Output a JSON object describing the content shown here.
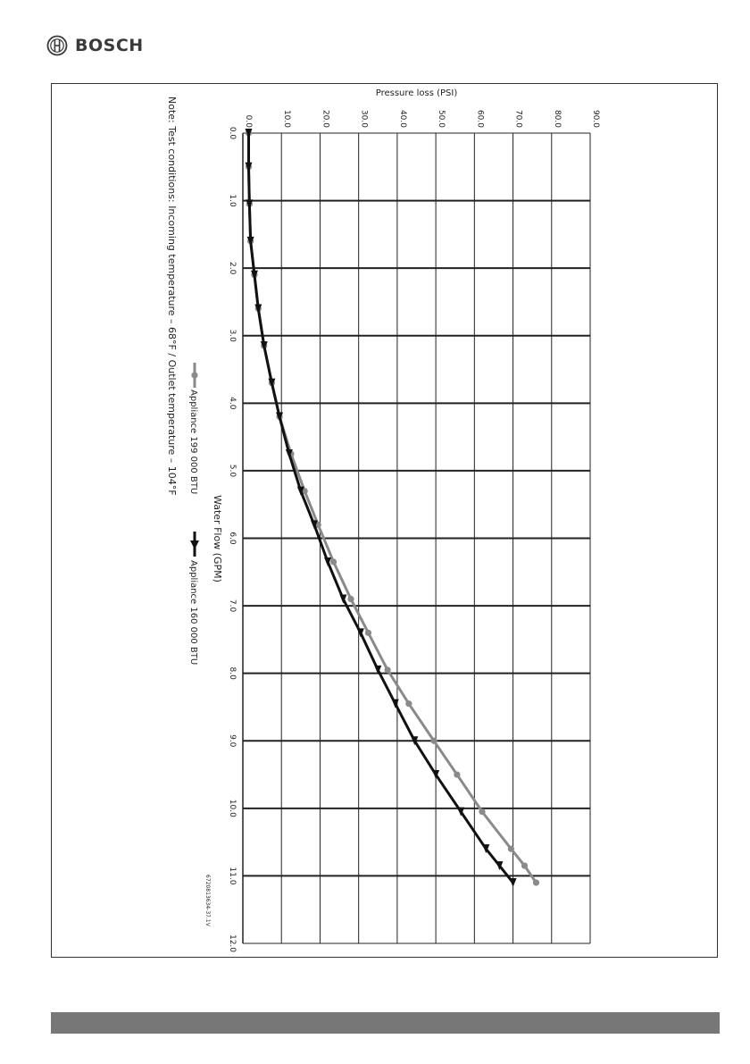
{
  "header": {
    "brand": "BOSCH"
  },
  "figure_id": "6720813634-37.1V",
  "colors": {
    "series_199": "#8a8a8a",
    "series_160": "#111111",
    "grid": "#222222",
    "footer_bar": "#777777"
  },
  "chart_data": {
    "type": "line",
    "orientation": "rotated 90 degrees clockwise (x axis runs down the page, y axis runs across)",
    "ylabel": "Pressure loss (PSI)",
    "xlabel": "Water Flow (GPM)",
    "note": "Note: Test conditions: Incoming temperature – 68°F / Outlet temperature – 104°F",
    "xlim": [
      0,
      12
    ],
    "ylim": [
      0,
      90
    ],
    "x_ticks": [
      "0.0",
      "1.0",
      "2.0",
      "3.0",
      "4.0",
      "5.0",
      "6.0",
      "7.0",
      "8.0",
      "9.0",
      "10.0",
      "11.0",
      "12.0"
    ],
    "y_ticks": [
      "0.0",
      "10.0",
      "20.0",
      "30.0",
      "40.0",
      "50.0",
      "60.0",
      "70.0",
      "80.0",
      "90.0"
    ],
    "grid": true,
    "legend_position": "bottom",
    "series": [
      {
        "name": "Appliance 199 000 BTU",
        "marker": "circle",
        "points": [
          [
            0.0,
            1.5
          ],
          [
            0.5,
            1.5
          ],
          [
            1.05,
            1.7
          ],
          [
            1.6,
            2.0
          ],
          [
            2.1,
            3.0
          ],
          [
            2.6,
            4.0
          ],
          [
            3.15,
            5.5
          ],
          [
            3.7,
            7.5
          ],
          [
            4.2,
            9.5
          ],
          [
            4.75,
            12.5
          ],
          [
            5.3,
            16.0
          ],
          [
            5.8,
            19.5
          ],
          [
            6.35,
            23.5
          ],
          [
            6.9,
            28.0
          ],
          [
            7.4,
            32.5
          ],
          [
            7.95,
            37.5
          ],
          [
            8.45,
            43.0
          ],
          [
            9.0,
            49.5
          ],
          [
            9.5,
            55.5
          ],
          [
            10.05,
            62.0
          ],
          [
            10.6,
            69.5
          ],
          [
            10.85,
            73.0
          ],
          [
            11.1,
            76.0
          ]
        ]
      },
      {
        "name": "Appliance 160 000 BTU",
        "marker": "triangle",
        "points": [
          [
            0.0,
            1.5
          ],
          [
            0.5,
            1.5
          ],
          [
            1.05,
            1.7
          ],
          [
            1.6,
            2.0
          ],
          [
            2.1,
            3.0
          ],
          [
            2.6,
            4.0
          ],
          [
            3.15,
            5.5
          ],
          [
            3.7,
            7.5
          ],
          [
            4.2,
            9.5
          ],
          [
            4.75,
            12.0
          ],
          [
            5.3,
            15.0
          ],
          [
            5.8,
            18.5
          ],
          [
            6.35,
            22.0
          ],
          [
            6.9,
            26.0
          ],
          [
            7.4,
            30.5
          ],
          [
            7.95,
            35.0
          ],
          [
            8.45,
            39.5
          ],
          [
            9.0,
            44.5
          ],
          [
            9.5,
            50.0
          ],
          [
            10.05,
            56.5
          ],
          [
            10.6,
            63.0
          ],
          [
            10.85,
            66.5
          ],
          [
            11.1,
            70.0
          ]
        ]
      }
    ]
  }
}
